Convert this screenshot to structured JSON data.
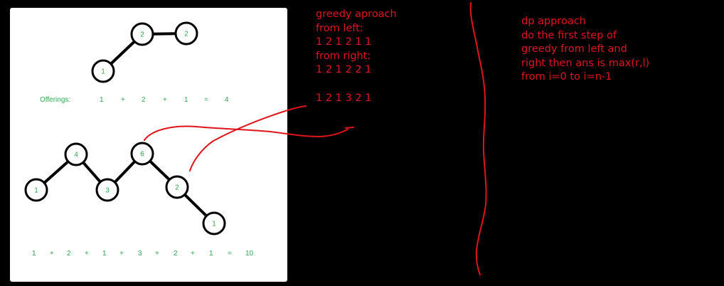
{
  "colors": {
    "background": "#000000",
    "panel": "#ffffff",
    "node_text": "#2fa84f",
    "ink": "#e0151b",
    "edge": "#000000"
  },
  "tree1": {
    "nodes": [
      "2",
      "2",
      "1"
    ],
    "offerings_label": "Offerings:",
    "offerings_sum": [
      "1",
      "+",
      "2",
      "+",
      "1",
      "=",
      "4"
    ]
  },
  "tree2": {
    "nodes": [
      "4",
      "6",
      "1",
      "3",
      "2",
      "1"
    ],
    "offerings_sum": [
      "1",
      "+",
      "2",
      "+",
      "1",
      "+",
      "3",
      "+",
      "2",
      "+",
      "1",
      "=",
      "10"
    ]
  },
  "greedy_note": {
    "line1": "greedy aproach",
    "line2": "from left:",
    "line3": "1 2 1 2 1 1",
    "line4": "from right:",
    "line5": "1 2 1 2 2 1",
    "line6": "",
    "line7": "1 2 1 3 2 1"
  },
  "dp_note": {
    "line1": "dp approach",
    "line2": "do the first step of",
    "line3": "greedy from left and",
    "line4": "right then ans is max(r,l)",
    "line5": "from i=0 to i=n-1"
  }
}
